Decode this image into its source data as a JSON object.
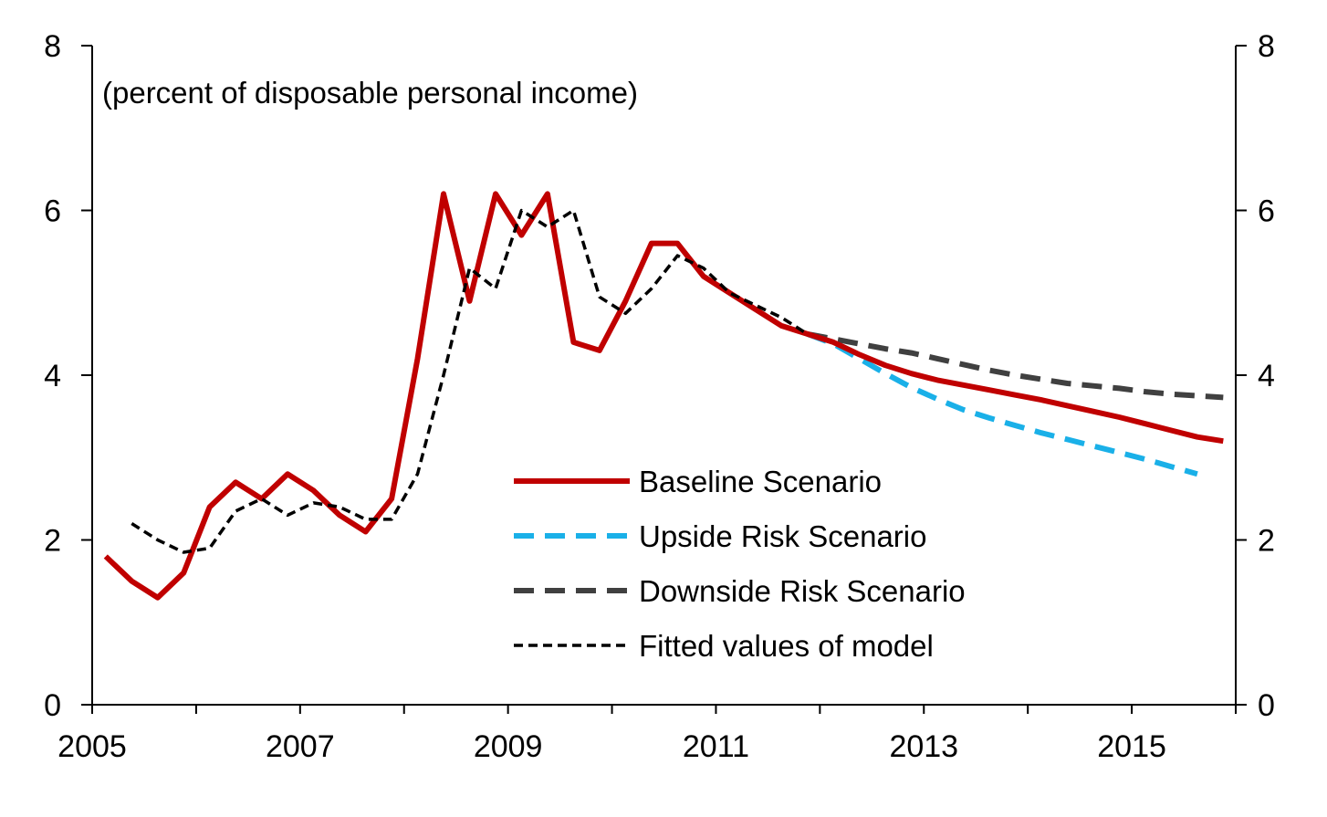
{
  "chart_data": {
    "type": "line",
    "annotation": "(percent of disposable personal income)",
    "xlim": [
      2005.0,
      2016.0
    ],
    "ylim": [
      0,
      8
    ],
    "y_ticks": [
      0,
      2,
      4,
      6,
      8
    ],
    "y_tick_labels": [
      "0",
      "2",
      "4",
      "6",
      "8"
    ],
    "x_tick_labels": [
      {
        "year": 2005,
        "label": "2005"
      },
      {
        "year": 2007,
        "label": "2007"
      },
      {
        "year": 2009,
        "label": "2009"
      },
      {
        "year": 2011,
        "label": "2011"
      },
      {
        "year": 2013,
        "label": "2013"
      },
      {
        "year": 2015,
        "label": "2015"
      }
    ],
    "x_minor_ticks": [
      2005,
      2006,
      2007,
      2008,
      2009,
      2010,
      2011,
      2012,
      2013,
      2014,
      2015,
      2016
    ],
    "legend_position": "lower-center",
    "grid": false,
    "series": [
      {
        "name": "Baseline Scenario",
        "color": "#c00000",
        "style": "solid",
        "points": [
          [
            2005.13,
            1.8
          ],
          [
            2005.38,
            1.5
          ],
          [
            2005.63,
            1.3
          ],
          [
            2005.88,
            1.6
          ],
          [
            2006.13,
            2.4
          ],
          [
            2006.38,
            2.7
          ],
          [
            2006.63,
            2.5
          ],
          [
            2006.88,
            2.8
          ],
          [
            2007.13,
            2.6
          ],
          [
            2007.38,
            2.3
          ],
          [
            2007.63,
            2.1
          ],
          [
            2007.88,
            2.5
          ],
          [
            2008.13,
            4.2
          ],
          [
            2008.38,
            6.2
          ],
          [
            2008.63,
            4.9
          ],
          [
            2008.88,
            6.2
          ],
          [
            2009.13,
            5.7
          ],
          [
            2009.38,
            6.2
          ],
          [
            2009.63,
            4.4
          ],
          [
            2009.88,
            4.3
          ],
          [
            2010.13,
            4.9
          ],
          [
            2010.38,
            5.6
          ],
          [
            2010.63,
            5.6
          ],
          [
            2010.88,
            5.2
          ],
          [
            2011.13,
            5.0
          ],
          [
            2011.38,
            4.8
          ],
          [
            2011.63,
            4.6
          ],
          [
            2011.88,
            4.5
          ],
          [
            2012.13,
            4.4
          ],
          [
            2012.38,
            4.25
          ],
          [
            2012.63,
            4.12
          ],
          [
            2012.88,
            4.02
          ],
          [
            2013.13,
            3.94
          ],
          [
            2013.38,
            3.88
          ],
          [
            2013.63,
            3.82
          ],
          [
            2013.88,
            3.76
          ],
          [
            2014.13,
            3.7
          ],
          [
            2014.38,
            3.63
          ],
          [
            2014.63,
            3.56
          ],
          [
            2014.88,
            3.49
          ],
          [
            2015.13,
            3.41
          ],
          [
            2015.38,
            3.33
          ],
          [
            2015.63,
            3.25
          ],
          [
            2015.88,
            3.2
          ]
        ]
      },
      {
        "name": "Upside Risk Scenario",
        "color": "#1ab0e8",
        "style": "dashed",
        "points": [
          [
            2011.88,
            4.5
          ],
          [
            2012.13,
            4.38
          ],
          [
            2012.38,
            4.2
          ],
          [
            2012.63,
            4.02
          ],
          [
            2012.88,
            3.85
          ],
          [
            2013.13,
            3.71
          ],
          [
            2013.38,
            3.58
          ],
          [
            2013.63,
            3.48
          ],
          [
            2013.88,
            3.39
          ],
          [
            2014.13,
            3.3
          ],
          [
            2014.38,
            3.22
          ],
          [
            2014.63,
            3.14
          ],
          [
            2014.88,
            3.06
          ],
          [
            2015.13,
            2.98
          ],
          [
            2015.38,
            2.89
          ],
          [
            2015.63,
            2.8
          ]
        ]
      },
      {
        "name": "Downside Risk Scenario",
        "color": "#404040",
        "style": "dashed",
        "points": [
          [
            2011.88,
            4.5
          ],
          [
            2012.13,
            4.44
          ],
          [
            2012.38,
            4.38
          ],
          [
            2012.63,
            4.32
          ],
          [
            2012.88,
            4.27
          ],
          [
            2013.13,
            4.2
          ],
          [
            2013.38,
            4.13
          ],
          [
            2013.63,
            4.06
          ],
          [
            2013.88,
            4.0
          ],
          [
            2014.13,
            3.95
          ],
          [
            2014.38,
            3.9
          ],
          [
            2014.63,
            3.87
          ],
          [
            2014.88,
            3.84
          ],
          [
            2015.13,
            3.8
          ],
          [
            2015.38,
            3.77
          ],
          [
            2015.63,
            3.75
          ],
          [
            2015.88,
            3.73
          ]
        ]
      },
      {
        "name": "Fitted values of model",
        "color": "#000000",
        "style": "fine-dashed",
        "points": [
          [
            2005.38,
            2.2
          ],
          [
            2005.63,
            2.0
          ],
          [
            2005.88,
            1.85
          ],
          [
            2006.13,
            1.9
          ],
          [
            2006.38,
            2.35
          ],
          [
            2006.63,
            2.5
          ],
          [
            2006.88,
            2.3
          ],
          [
            2007.13,
            2.45
          ],
          [
            2007.38,
            2.4
          ],
          [
            2007.63,
            2.25
          ],
          [
            2007.88,
            2.25
          ],
          [
            2008.13,
            2.8
          ],
          [
            2008.38,
            4.0
          ],
          [
            2008.63,
            5.3
          ],
          [
            2008.88,
            5.05
          ],
          [
            2009.13,
            6.0
          ],
          [
            2009.38,
            5.8
          ],
          [
            2009.63,
            6.0
          ],
          [
            2009.88,
            4.95
          ],
          [
            2010.13,
            4.75
          ],
          [
            2010.38,
            5.05
          ],
          [
            2010.63,
            5.45
          ],
          [
            2010.88,
            5.3
          ],
          [
            2011.13,
            5.0
          ],
          [
            2011.38,
            4.85
          ],
          [
            2011.63,
            4.7
          ],
          [
            2011.88,
            4.5
          ]
        ]
      }
    ]
  }
}
